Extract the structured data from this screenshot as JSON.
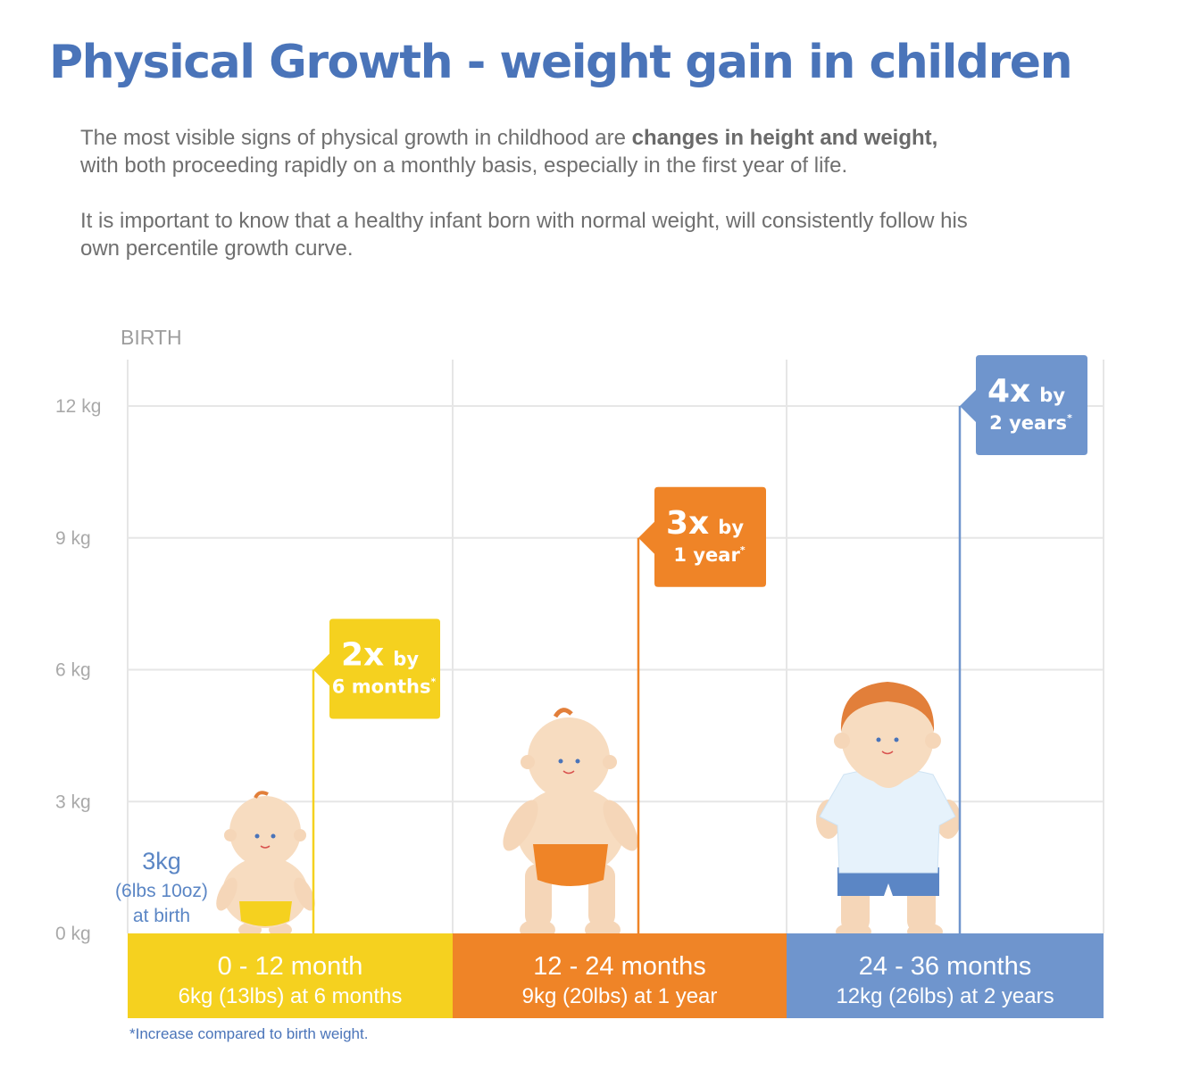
{
  "title": "Physical Growth - weight gain in children",
  "intro": {
    "p1_pre": "The most visible signs of physical growth in childhood are ",
    "p1_bold": "changes in height and weight,",
    "p1_post": " with both proceeding rapidly on a monthly basis, especially in the first year of life.",
    "p2": "It is important to know that a healthy infant born with normal weight, will consistently follow his own percentile growth curve."
  },
  "footnote": "*Increase compared to birth weight.",
  "colors": {
    "title": "#4a74b9",
    "yellow": "#f5d11f",
    "orange": "#ef8427",
    "blue": "#6f95cd",
    "grid": "#e6e6e6"
  },
  "chart_data": {
    "type": "bar",
    "birth_label": "BIRTH",
    "y_ticks": [
      "0 kg",
      "3 kg",
      "6 kg",
      "9 kg",
      "12 kg"
    ],
    "y_tick_values": [
      0,
      3,
      6,
      9,
      12
    ],
    "ylim": [
      0,
      13
    ],
    "birth_weight": {
      "value": 3,
      "line1": "3kg",
      "line2": "(6lbs 10oz)",
      "line3": "at birth"
    },
    "categories": [
      {
        "label": "0 - 12 month",
        "sub": "6kg (13lbs) at 6 months",
        "value": 6,
        "color": "#f5d11f",
        "callout_big": "2x",
        "callout_by": "by",
        "callout_small": "6 months",
        "callout_star": "*"
      },
      {
        "label": "12 - 24 months",
        "sub": "9kg (20lbs) at 1 year",
        "value": 9,
        "color": "#ef8427",
        "callout_big": "3x",
        "callout_by": "by",
        "callout_small": "1 year",
        "callout_star": "*"
      },
      {
        "label": "24 - 36 months",
        "sub": "12kg (26lbs) at 2 years",
        "value": 12,
        "color": "#6f95cd",
        "callout_big": "4x",
        "callout_by": "by",
        "callout_small": "2 years",
        "callout_star": "*"
      }
    ]
  }
}
